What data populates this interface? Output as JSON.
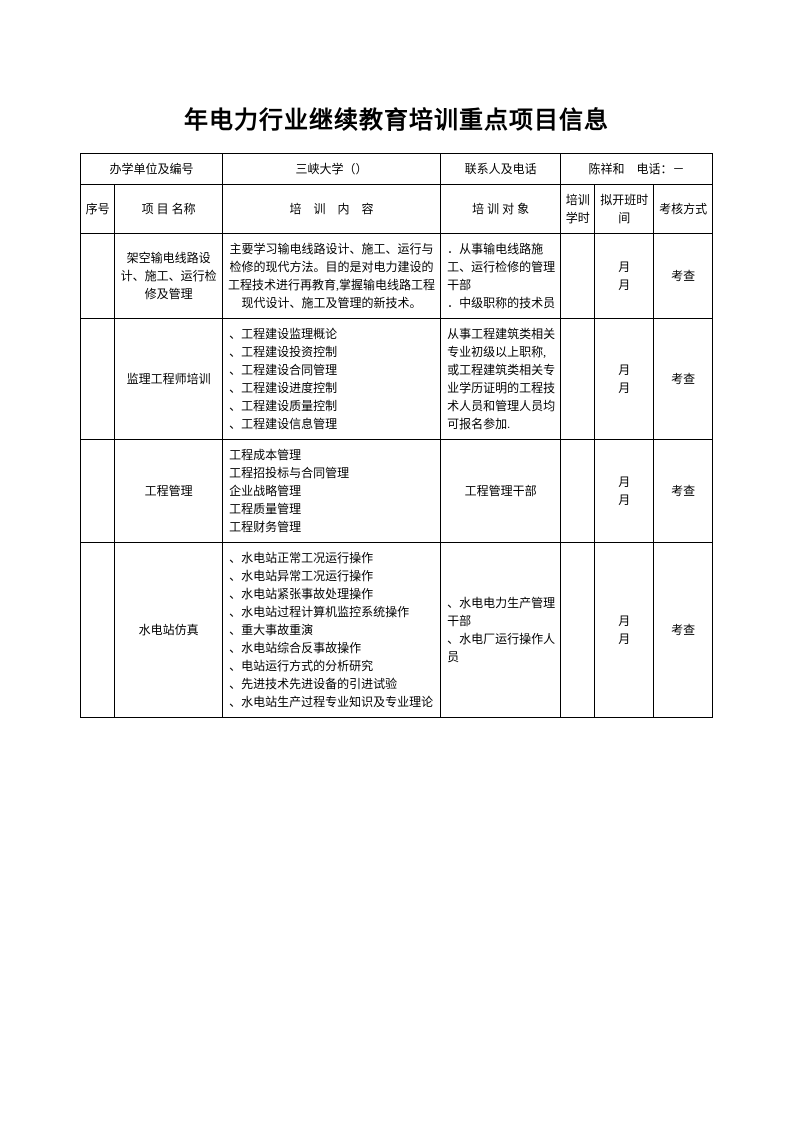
{
  "title": "年电力行业继续教育培训重点项目信息",
  "info_row": {
    "unit_label": "办学单位及编号",
    "unit_value": "三峡大学（）",
    "contact_label": "联系人及电话",
    "contact_value": "陈祥和　电话：－"
  },
  "headers": {
    "seq": "序号",
    "name": "项 目 名称",
    "content": "培　训　内　容",
    "target": "培 训 对 象",
    "hours": "培训学时",
    "time": "拟开班时间",
    "assess": "考核方式"
  },
  "rows": [
    {
      "seq": "",
      "name": "架空输电线路设计、施工、运行检修及管理",
      "content": "主要学习输电线路设计、施工、运行与检修的现代方法。目的是对电力建设的工程技术进行再教育,掌握输电线路工程现代设计、施工及管理的新技术。",
      "content_align": "center",
      "target": "．从事输电线路施工、运行检修的管理干部\n．中级职称的技术员",
      "target_align": "left",
      "hours": "",
      "time": "月月",
      "assess": "考查"
    },
    {
      "seq": "",
      "name": "监理工程师培训",
      "content": "、工程建设监理概论\n、工程建设投资控制\n、工程建设合同管理\n、工程建设进度控制\n、工程建设质量控制\n、工程建设信息管理",
      "content_align": "left",
      "target": "从事工程建筑类相关专业初级以上职称,或工程建筑类相关专业学历证明的工程技术人员和管理人员均可报名参加.",
      "target_align": "left",
      "hours": "",
      "time": "月月",
      "assess": "考查"
    },
    {
      "seq": "",
      "name": "工程管理",
      "content": "工程成本管理\n工程招投标与合同管理\n企业战略管理\n工程质量管理\n工程财务管理",
      "content_align": "left",
      "target": "工程管理干部",
      "target_align": "center",
      "hours": "",
      "time": "月月",
      "assess": "考查"
    },
    {
      "seq": "",
      "name": "水电站仿真",
      "content": "、水电站正常工况运行操作\n、水电站异常工况运行操作\n、水电站紧张事故处理操作\n、水电站过程计算机监控系统操作\n、重大事故重演\n、水电站综合反事故操作\n、电站运行方式的分析研究\n、先进技术先进设备的引进试验\n、水电站生产过程专业知识及专业理论",
      "content_align": "left",
      "target": "、水电电力生产管理干部\n、水电厂运行操作人员",
      "target_align": "left",
      "hours": "",
      "time": "月月",
      "assess": "考查"
    }
  ]
}
